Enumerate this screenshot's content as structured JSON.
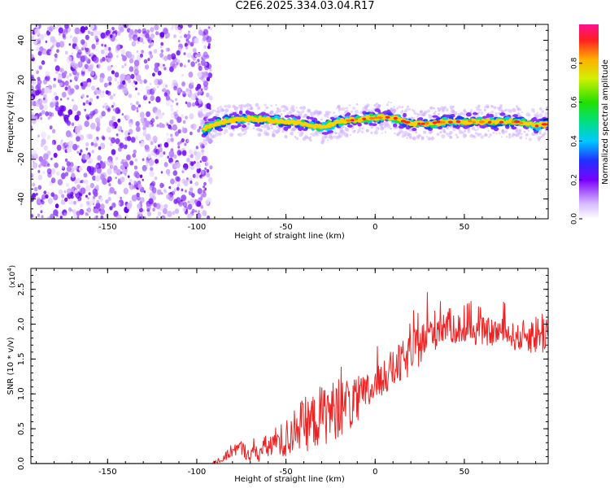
{
  "title": "C2E6.2025.334.03.04.R17",
  "chart_data": [
    {
      "type": "heatmap",
      "xlabel": "Height of straight line (km)",
      "ylabel": "Frequency (Hz)",
      "xlim": [
        -193,
        97
      ],
      "ylim": [
        -50,
        48
      ],
      "xticks": [
        -150,
        -100,
        -50,
        0,
        50
      ],
      "yticks": [
        -40,
        -20,
        0,
        20,
        40
      ],
      "noise_region_x": [
        -193,
        -92
      ],
      "signal_start_x": -92,
      "ridge_profile": {
        "x": [
          -98,
          -92,
          -85,
          -78,
          -70,
          -60,
          -50,
          -40,
          -30,
          -20,
          -10,
          0,
          10,
          20,
          30,
          40,
          50,
          60,
          70,
          80,
          90,
          97
        ],
        "y": [
          -6,
          -3,
          -1,
          0,
          0.5,
          0,
          -1,
          -2,
          -4,
          -1,
          0,
          1,
          1,
          -2,
          -2,
          -1,
          -1,
          -1,
          -1,
          -1,
          -3,
          -2
        ]
      },
      "colorbar": {
        "label": "Normalized spectral amplitude",
        "range": [
          0,
          1
        ],
        "ticks": [
          "0.0",
          "0.2",
          "0.4",
          "0.6",
          "0.8"
        ]
      }
    },
    {
      "type": "line",
      "xlabel": "Height of straight line (km)",
      "ylabel": "SNR (10 * v/v)",
      "multiplier": "(x10",
      "multiplier_exp": "4",
      "multiplier_close": ")",
      "xlim": [
        -193,
        97
      ],
      "ylim": [
        0,
        2.8
      ],
      "xticks": [
        -150,
        -100,
        -50,
        0,
        50
      ],
      "yticks": [
        "0.0",
        "0.5",
        "1.0",
        "1.5",
        "2.0",
        "2.5"
      ],
      "series": [
        {
          "name": "SNR",
          "color": "#ee2222",
          "x": [
            -193,
            -92,
            -85,
            -80,
            -75,
            -70,
            -65,
            -60,
            -55,
            -50,
            -45,
            -40,
            -35,
            -30,
            -25,
            -20,
            -15,
            -10,
            -5,
            0,
            5,
            10,
            15,
            20,
            25,
            30,
            35,
            40,
            45,
            50,
            55,
            60,
            65,
            70,
            75,
            80,
            85,
            90,
            95,
            97
          ],
          "y": [
            0.0,
            0.0,
            0.06,
            0.2,
            0.22,
            0.12,
            0.16,
            0.25,
            0.3,
            0.33,
            0.5,
            0.55,
            0.6,
            0.7,
            0.75,
            0.78,
            0.85,
            0.85,
            1.0,
            1.1,
            1.25,
            1.35,
            1.45,
            1.55,
            1.7,
            1.85,
            1.95,
            2.0,
            1.95,
            1.9,
            1.9,
            1.9,
            1.88,
            1.9,
            1.85,
            1.8,
            1.85,
            1.85,
            1.9,
            1.95
          ],
          "noise_amp": [
            0.0,
            0.0,
            0.05,
            0.1,
            0.12,
            0.1,
            0.15,
            0.2,
            0.25,
            0.3,
            0.35,
            0.4,
            0.4,
            0.45,
            0.45,
            0.4,
            0.4,
            0.35,
            0.3,
            0.25,
            0.25,
            0.3,
            0.3,
            0.3,
            0.3,
            0.3,
            0.3,
            0.25,
            0.25,
            0.2,
            0.2,
            0.2,
            0.2,
            0.2,
            0.2,
            0.2,
            0.25,
            0.3,
            0.35,
            0.35
          ]
        }
      ]
    }
  ]
}
